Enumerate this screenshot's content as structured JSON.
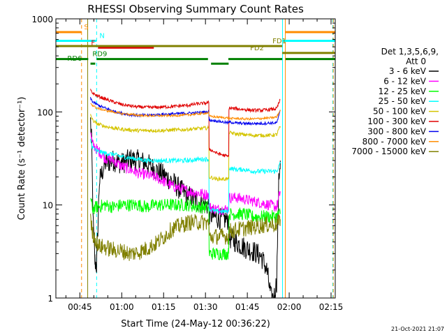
{
  "chart_data": {
    "type": "line",
    "title": "RHESSI Observing Summary Count Rates",
    "xlabel": "Start Time (24-May-12 00:36:22)",
    "ylabel": "Count Rate (s⁻¹ detector⁻¹)",
    "yscale": "log",
    "ylim": [
      1,
      1000
    ],
    "xlim_minutes": [
      36.4,
      136.5
    ],
    "x_unit": "minutes after 00:00 UT, 24-May-12",
    "xticks": [
      {
        "t": 45,
        "label": "00:45"
      },
      {
        "t": 60,
        "label": "01:00"
      },
      {
        "t": 75,
        "label": "01:15"
      },
      {
        "t": 90,
        "label": "01:30"
      },
      {
        "t": 105,
        "label": "01:45"
      },
      {
        "t": 120,
        "label": "02:00"
      },
      {
        "t": 135,
        "label": "02:15"
      }
    ],
    "yticks": [
      {
        "v": 1,
        "label": "1"
      },
      {
        "v": 10,
        "label": "10"
      },
      {
        "v": 100,
        "label": "100"
      },
      {
        "v": 1000,
        "label": "1000"
      }
    ],
    "legend": {
      "placement": "right",
      "header1": "Det 1,3,5,6,9,",
      "header2": "Att 0",
      "entries": [
        {
          "label": "3 - 6 keV",
          "color": "#000000"
        },
        {
          "label": "6 - 12 keV",
          "color": "#ff00ff"
        },
        {
          "label": "12 - 25 keV",
          "color": "#00ff00"
        },
        {
          "label": "25 - 50 keV",
          "color": "#00ffff"
        },
        {
          "label": "50 - 100 keV",
          "color": "#d4c400"
        },
        {
          "label": "100 - 300 keV",
          "color": "#e00000"
        },
        {
          "label": "300 - 800 keV",
          "color": "#0000ee"
        },
        {
          "label": "800 - 7000 keV",
          "color": "#ff8c00"
        },
        {
          "label": "7000 - 15000 keV",
          "color": "#808000"
        }
      ]
    },
    "series": [
      {
        "name": "3 - 6 keV",
        "color": "#000000",
        "x": [
          48.8,
          49.2,
          49.8,
          50.4,
          51.0,
          52.0,
          54.0,
          57.0,
          60.0,
          63.0,
          66.0,
          69.0,
          72.0,
          75.0,
          78.0,
          81.0,
          84.0,
          87.0,
          90.0,
          91.2,
          91.3,
          93.0,
          96.0,
          98.3,
          98.4,
          101.0,
          104.0,
          107.0,
          110.0,
          112.0,
          113.5,
          114.5,
          115.5,
          116.3,
          116.8
        ],
        "y": [
          80,
          50,
          6,
          2.5,
          2.2,
          18,
          28,
          30,
          28,
          31,
          30,
          28,
          24,
          21,
          18,
          14.5,
          12.5,
          11,
          10,
          10,
          8,
          7.5,
          7,
          7,
          4.5,
          4,
          3.5,
          3.2,
          2.8,
          2,
          1,
          1,
          1.5,
          20,
          30
        ]
      },
      {
        "name": "6 - 12 keV",
        "color": "#ff00ff",
        "x": [
          48.8,
          49.5,
          51.0,
          54.0,
          57.0,
          60.0,
          63.0,
          66.0,
          69.0,
          72.0,
          75.0,
          78.0,
          81.0,
          84.0,
          87.0,
          90.0,
          91.2,
          91.3,
          94.0,
          98.3,
          98.4,
          101.0,
          104.0,
          107.0,
          110.0,
          113.0,
          115.5,
          116.3,
          116.8
        ],
        "y": [
          60,
          45,
          40,
          32,
          30,
          26,
          24,
          22,
          21,
          20,
          18,
          16,
          15,
          14,
          13.5,
          13,
          13,
          9.5,
          9,
          9,
          12,
          12,
          11.5,
          11,
          10.5,
          10,
          9.5,
          12,
          14
        ]
      },
      {
        "name": "12 - 25 keV",
        "color": "#00ff00",
        "x": [
          48.8,
          49.5,
          51.0,
          54.0,
          57.0,
          60.0,
          63.0,
          66.0,
          69.0,
          72.0,
          75.0,
          78.0,
          81.0,
          84.0,
          87.0,
          90.0,
          91.2,
          91.3,
          94.0,
          98.3,
          98.4,
          101.0,
          104.0,
          107.0,
          110.0,
          113.0,
          115.5,
          116.3,
          116.8
        ],
        "y": [
          12,
          9,
          9.5,
          10,
          9.5,
          10,
          10,
          10,
          9.5,
          10,
          10,
          10,
          10,
          10,
          9.5,
          9.5,
          9.5,
          3,
          3,
          3,
          8,
          8,
          8,
          7.5,
          7.5,
          7.5,
          7.5,
          8,
          8
        ]
      },
      {
        "name": "25 - 50 keV",
        "color": "#00ffff",
        "x": [
          48.8,
          49.5,
          51.0,
          54.0,
          57.0,
          60.0,
          63.0,
          66.0,
          69.0,
          72.0,
          75.0,
          78.0,
          81.0,
          84.0,
          87.0,
          90.0,
          91.2,
          91.3,
          94.0,
          98.3,
          98.4,
          101.0,
          104.0,
          107.0,
          110.0,
          113.0,
          115.5,
          116.3,
          116.8
        ],
        "y": [
          50,
          42,
          38,
          36,
          35,
          33,
          32,
          31,
          30,
          30,
          30,
          30,
          30,
          30,
          31,
          31,
          31,
          9,
          8.5,
          8.5,
          25,
          24,
          24,
          23,
          23,
          23,
          23,
          26,
          28
        ]
      },
      {
        "name": "50 - 100 keV",
        "color": "#d4c400",
        "x": [
          48.8,
          49.5,
          51.0,
          54.0,
          57.0,
          60.0,
          63.0,
          66.0,
          69.0,
          72.0,
          75.0,
          78.0,
          81.0,
          84.0,
          87.0,
          90.0,
          91.2,
          91.3,
          94.0,
          98.3,
          98.4,
          101.0,
          104.0,
          107.0,
          110.0,
          113.0,
          115.5,
          116.3,
          116.8
        ],
        "y": [
          95,
          82,
          75,
          70,
          67,
          65,
          64,
          63,
          63,
          63,
          63,
          64,
          64,
          65,
          66,
          67,
          67,
          20,
          19,
          19,
          60,
          58,
          57,
          56,
          56,
          56,
          57,
          65,
          70
        ]
      },
      {
        "name": "100 - 300 keV",
        "color": "#e00000",
        "x": [
          48.8,
          49.5,
          51.0,
          54.0,
          57.0,
          60.0,
          63.0,
          66.0,
          69.0,
          72.0,
          75.0,
          78.0,
          81.0,
          84.0,
          87.0,
          90.0,
          91.2,
          91.3,
          94.0,
          98.3,
          98.4,
          101.0,
          104.0,
          107.0,
          110.0,
          113.0,
          115.5,
          116.3,
          116.8
        ],
        "y": [
          170,
          160,
          150,
          138,
          128,
          120,
          116,
          113,
          112,
          112,
          113,
          114,
          116,
          118,
          122,
          124,
          126,
          40,
          36,
          33,
          110,
          108,
          106,
          104,
          104,
          106,
          108,
          125,
          135
        ]
      },
      {
        "name": "300 - 800 keV",
        "color": "#0000ee",
        "x": [
          48.8,
          49.5,
          51.0,
          54.0,
          57.0,
          60.0,
          63.0,
          66.0,
          69.0,
          72.0,
          75.0,
          78.0,
          81.0,
          84.0,
          87.0,
          90.0,
          91.2,
          91.3,
          94.0,
          98.3,
          98.4,
          101.0,
          104.0,
          107.0,
          110.0,
          113.0,
          115.5,
          116.3,
          116.8
        ],
        "y": [
          140,
          130,
          120,
          110,
          102,
          97,
          93,
          92,
          92,
          93,
          94,
          95,
          96,
          97,
          98,
          100,
          100,
          82,
          80,
          76,
          78,
          76,
          75,
          75,
          75,
          76,
          76,
          90,
          105
        ]
      },
      {
        "name": "800 - 7000 keV",
        "color": "#ff8c00",
        "x": [
          48.8,
          49.5,
          51.0,
          54.0,
          57.0,
          60.0,
          63.0,
          66.0,
          69.0,
          72.0,
          75.0,
          78.0,
          81.0,
          84.0,
          87.0,
          90.0,
          91.2,
          91.3,
          94.0,
          98.3,
          98.4,
          101.0,
          104.0,
          107.0,
          110.0,
          113.0,
          115.5,
          116.3,
          116.8
        ],
        "y": [
          125,
          118,
          110,
          104,
          100,
          96,
          94,
          92,
          91,
          91,
          91,
          91,
          92,
          93,
          95,
          97,
          98,
          90,
          88,
          86,
          85,
          85,
          84,
          84,
          85,
          86,
          88,
          98,
          105
        ]
      },
      {
        "name": "7000 - 15000 keV",
        "color": "#808000",
        "x": [
          48.8,
          49.5,
          51.0,
          51.8,
          54.0,
          57.0,
          60.0,
          63.0,
          66.0,
          69.0,
          72.0,
          75.0,
          78.0,
          81.0,
          84.0,
          87.0,
          90.0,
          91.2,
          91.3,
          94.0,
          98.3,
          98.4,
          101.0,
          104.0,
          107.0,
          110.0,
          113.0,
          115.5,
          116.3,
          116.8
        ],
        "y": [
          7,
          5,
          4,
          3.6,
          3.5,
          3.3,
          3.2,
          3.0,
          3.1,
          3.4,
          3.8,
          4.5,
          5.5,
          6.0,
          6.5,
          6.5,
          6.5,
          6.5,
          4.5,
          4.6,
          4.6,
          5.2,
          5.4,
          5.6,
          5.8,
          6.0,
          6.2,
          6.2,
          6.5,
          7.0
        ]
      }
    ],
    "vertical_markers": [
      {
        "t": 45.6,
        "color": "#ff8c00",
        "style": "dashed"
      },
      {
        "t": 47.8,
        "color": "#808000",
        "style": "solid"
      },
      {
        "t": 51.0,
        "color": "#00ffff",
        "style": "dashed"
      },
      {
        "t": 117.6,
        "color": "#00ffff",
        "style": "solid"
      },
      {
        "t": 118.6,
        "color": "#ff8c00",
        "style": "solid"
      },
      {
        "t": 135.6,
        "color": "#00ffff",
        "style": "dashed"
      },
      {
        "t": 135.8,
        "color": "#ff8c00",
        "style": "dashed"
      }
    ],
    "flag_bars": [
      {
        "label": "S",
        "color": "#ff8c00",
        "y": 720,
        "segments": [
          [
            36.4,
            45.6
          ],
          [
            118.6,
            136.5
          ]
        ],
        "label_t": 46.5
      },
      {
        "label": "N",
        "color": "#00ffff",
        "y": 580,
        "segments": [
          [
            36.4,
            51.0
          ],
          [
            117.6,
            136.5
          ]
        ],
        "label_t": 52.0
      },
      {
        "label": "F",
        "color": "#e00000",
        "y": 490,
        "segments": [
          [
            51.5,
            71.5
          ]
        ],
        "label_t": 49.0
      },
      {
        "label": "FD1",
        "color": "#808000",
        "y": 510,
        "segments": [
          [
            36.4,
            117.5
          ]
        ],
        "label_t": 114.0
      },
      {
        "label": "FD2",
        "color": "#808000",
        "y": 430,
        "segments": [
          [
            117.5,
            136.5
          ]
        ],
        "label_t": 106.0
      },
      {
        "label": "RD6",
        "color": "#008000",
        "y": 330,
        "segments": [
          [
            48.8,
            50.5
          ],
          [
            92.0,
            98.3
          ]
        ],
        "label_t": 40.5
      },
      {
        "label": "RD9",
        "color": "#008000",
        "y": 370,
        "segments": [
          [
            36.4,
            48.0
          ],
          [
            51.0,
            90.9
          ],
          [
            98.2,
            117.5
          ],
          [
            118.7,
            136.5
          ]
        ],
        "label_t": 49.5
      }
    ]
  },
  "footer": {
    "timestamp": "21-Oct-2021 21:07"
  }
}
